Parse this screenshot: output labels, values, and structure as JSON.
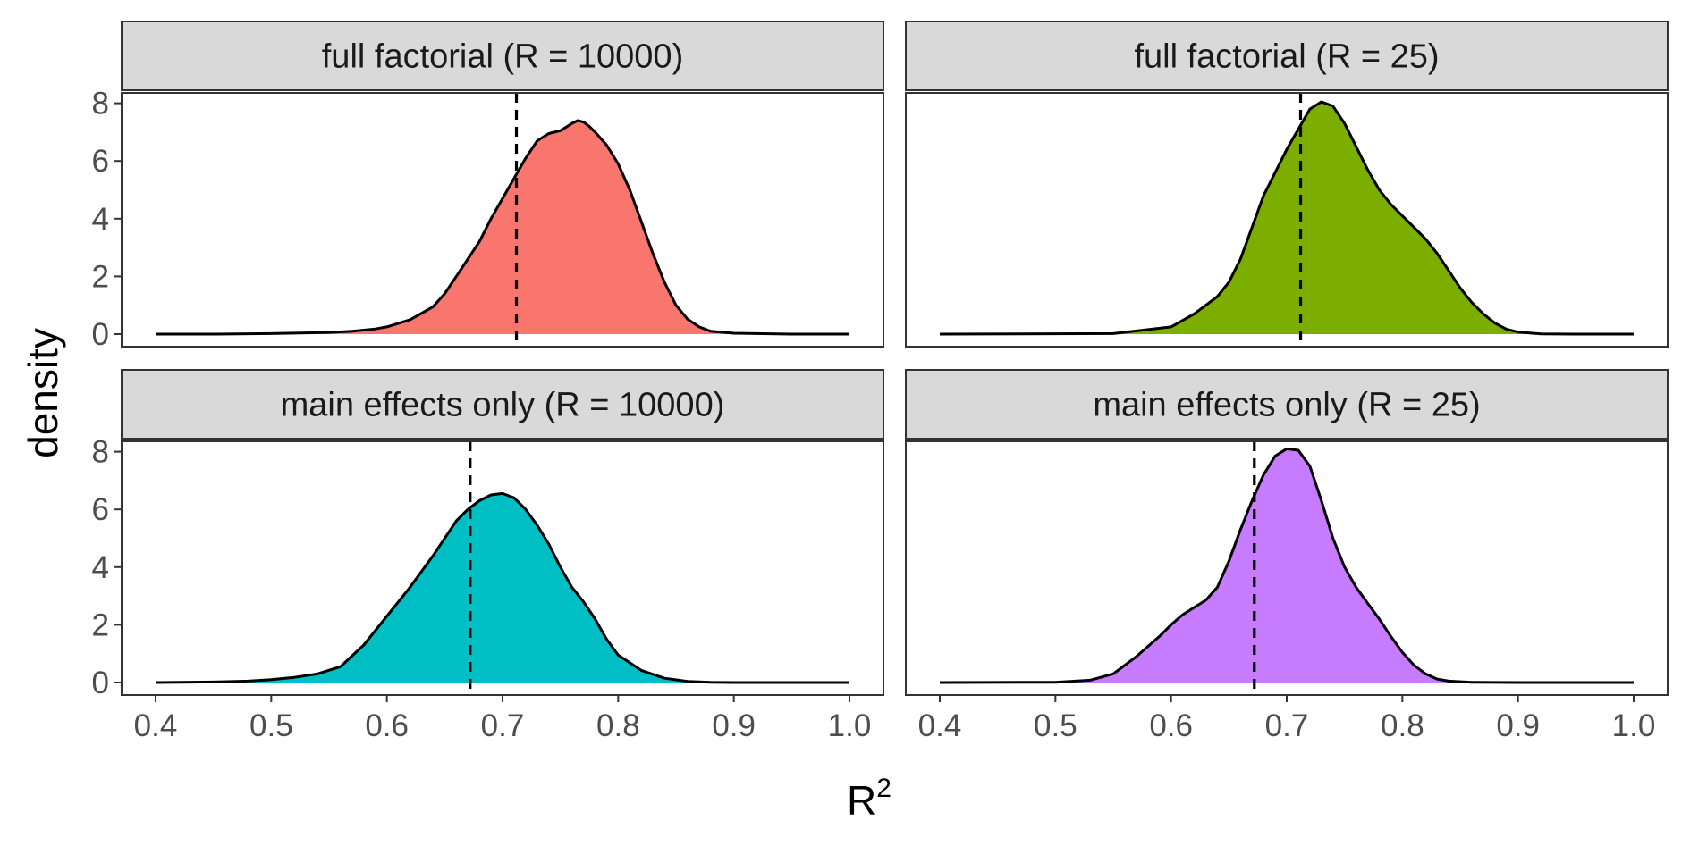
{
  "chart_data": {
    "type": "area",
    "xlabel": "R",
    "xlabel_superscript": "2",
    "ylabel": "density",
    "xlim": [
      0.4,
      1.0
    ],
    "ylim": [
      0,
      8
    ],
    "x_ticks": [
      "0.4",
      "0.5",
      "0.6",
      "0.7",
      "0.8",
      "0.9",
      "1.0"
    ],
    "y_ticks": [
      "0",
      "2",
      "4",
      "6",
      "8"
    ],
    "grid": false,
    "legend": "none",
    "facets": [
      {
        "label": "full factorial (R = 10000)",
        "fill": "#F8766D",
        "reference_line": 0.712,
        "x": [
          0.4,
          0.45,
          0.5,
          0.55,
          0.57,
          0.59,
          0.6,
          0.62,
          0.63,
          0.64,
          0.65,
          0.66,
          0.67,
          0.68,
          0.69,
          0.7,
          0.71,
          0.72,
          0.73,
          0.74,
          0.75,
          0.76,
          0.765,
          0.77,
          0.775,
          0.78,
          0.79,
          0.8,
          0.81,
          0.82,
          0.83,
          0.84,
          0.85,
          0.86,
          0.87,
          0.88,
          0.9,
          0.95,
          1.0
        ],
        "y": [
          0,
          0,
          0.02,
          0.06,
          0.1,
          0.18,
          0.25,
          0.5,
          0.72,
          0.95,
          1.4,
          2.0,
          2.6,
          3.2,
          4.0,
          4.7,
          5.4,
          6.1,
          6.7,
          6.95,
          7.05,
          7.3,
          7.4,
          7.35,
          7.2,
          7.0,
          6.55,
          5.9,
          5.0,
          3.9,
          2.8,
          1.8,
          1.0,
          0.52,
          0.25,
          0.1,
          0.03,
          0,
          0
        ]
      },
      {
        "label": "full factorial (R = 25)",
        "fill": "#7CAE00",
        "reference_line": 0.712,
        "x": [
          0.4,
          0.55,
          0.6,
          0.62,
          0.64,
          0.65,
          0.66,
          0.67,
          0.68,
          0.69,
          0.7,
          0.71,
          0.72,
          0.73,
          0.74,
          0.75,
          0.76,
          0.77,
          0.78,
          0.79,
          0.8,
          0.81,
          0.82,
          0.83,
          0.84,
          0.85,
          0.86,
          0.87,
          0.88,
          0.89,
          0.9,
          0.92,
          0.95,
          1.0
        ],
        "y": [
          0,
          0.02,
          0.25,
          0.7,
          1.3,
          1.8,
          2.6,
          3.7,
          4.8,
          5.6,
          6.4,
          7.1,
          7.8,
          8.05,
          7.9,
          7.3,
          6.5,
          5.7,
          5.0,
          4.5,
          4.1,
          3.7,
          3.3,
          2.8,
          2.2,
          1.6,
          1.1,
          0.7,
          0.38,
          0.17,
          0.07,
          0.01,
          0,
          0
        ]
      },
      {
        "label": "main effects only (R = 10000)",
        "fill": "#00BFC4",
        "reference_line": 0.672,
        "x": [
          0.4,
          0.45,
          0.48,
          0.5,
          0.52,
          0.54,
          0.56,
          0.58,
          0.6,
          0.62,
          0.64,
          0.66,
          0.67,
          0.68,
          0.69,
          0.7,
          0.71,
          0.72,
          0.73,
          0.74,
          0.75,
          0.76,
          0.77,
          0.78,
          0.79,
          0.8,
          0.82,
          0.84,
          0.86,
          0.88,
          0.9,
          0.95,
          1.0
        ],
        "y": [
          0,
          0.02,
          0.05,
          0.1,
          0.18,
          0.3,
          0.55,
          1.3,
          2.3,
          3.3,
          4.4,
          5.6,
          6.0,
          6.3,
          6.5,
          6.55,
          6.4,
          6.0,
          5.45,
          4.8,
          4.0,
          3.3,
          2.8,
          2.2,
          1.5,
          0.95,
          0.42,
          0.15,
          0.04,
          0.01,
          0,
          0,
          0
        ]
      },
      {
        "label": "main effects only (R = 25)",
        "fill": "#C77CFF",
        "reference_line": 0.672,
        "x": [
          0.4,
          0.5,
          0.53,
          0.55,
          0.57,
          0.59,
          0.6,
          0.61,
          0.62,
          0.63,
          0.64,
          0.65,
          0.66,
          0.67,
          0.68,
          0.69,
          0.7,
          0.71,
          0.72,
          0.73,
          0.74,
          0.75,
          0.76,
          0.77,
          0.78,
          0.79,
          0.8,
          0.81,
          0.82,
          0.83,
          0.84,
          0.86,
          0.9,
          1.0
        ],
        "y": [
          0,
          0.01,
          0.08,
          0.3,
          0.9,
          1.6,
          2.0,
          2.35,
          2.6,
          2.85,
          3.3,
          4.2,
          5.3,
          6.3,
          7.2,
          7.85,
          8.1,
          8.05,
          7.5,
          6.3,
          5.0,
          4.0,
          3.3,
          2.75,
          2.2,
          1.6,
          1.05,
          0.6,
          0.3,
          0.12,
          0.05,
          0.01,
          0,
          0
        ]
      }
    ]
  }
}
